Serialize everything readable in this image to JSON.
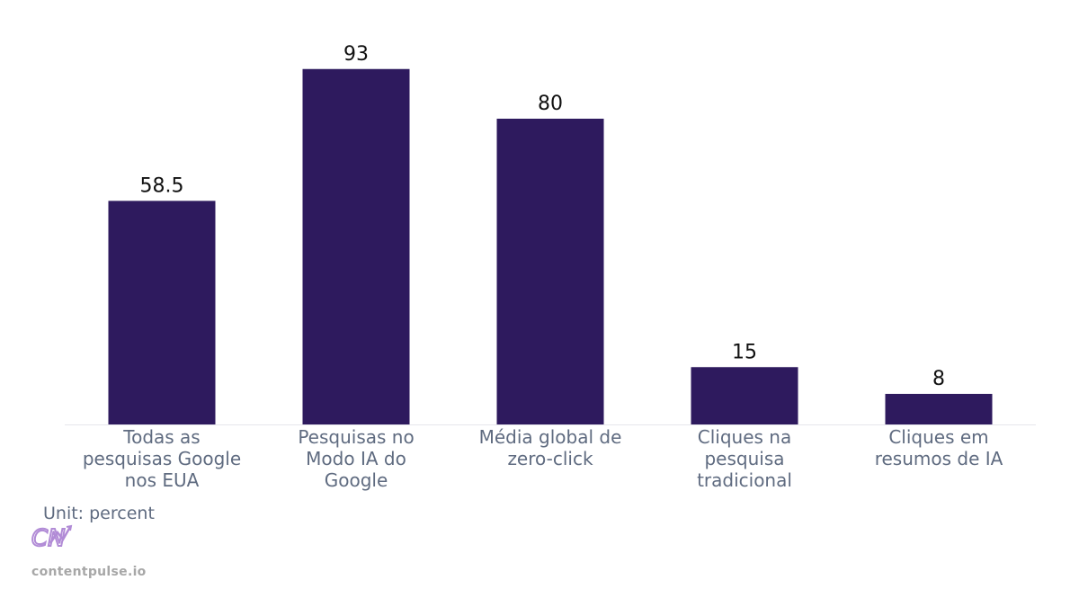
{
  "chart_data": {
    "type": "bar",
    "categories": [
      [
        "Todas as",
        "pesquisas Google",
        "nos EUA"
      ],
      [
        "Pesquisas no",
        "Modo IA do",
        "Google"
      ],
      [
        "Média global de",
        "zero-click"
      ],
      [
        "Cliques na",
        "pesquisa",
        "tradicional"
      ],
      [
        "Cliques em",
        "resumos de IA"
      ]
    ],
    "values": [
      58.5,
      93,
      80,
      15,
      8
    ],
    "value_labels": [
      "58.5",
      "93",
      "80",
      "15",
      "8"
    ],
    "ylim": [
      0,
      100
    ],
    "grid": false,
    "bar_color": "#2e1a5e",
    "label_color": "#5f6b80",
    "value_label_color": "#111111"
  },
  "footer": {
    "unit_label": "Unit: percent",
    "site": "contentpulse.io",
    "logo_text": "CN",
    "logo_color": "#b18bd6"
  }
}
